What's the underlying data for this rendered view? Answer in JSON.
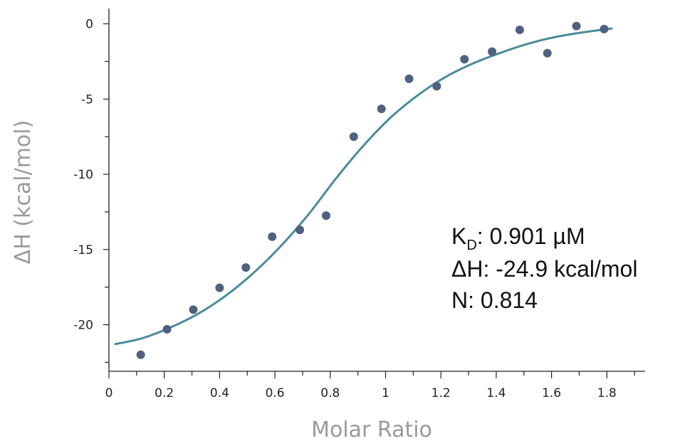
{
  "chart_data": {
    "type": "scatter",
    "xlabel": "Molar Ratio",
    "ylabel": "ΔH (kcal/mol)",
    "xlim": [
      0,
      1.9
    ],
    "ylim": [
      -23.5,
      1
    ],
    "x_ticks": [
      "0",
      "0.2",
      "0.4",
      "0.6",
      "0.8",
      "1",
      "1.2",
      "1.4",
      "1.6",
      "1.8"
    ],
    "y_ticks": [
      "0",
      "-5",
      "-10",
      "-15",
      "-20"
    ],
    "grid": false,
    "colors": {
      "points": "#50607f",
      "fit": "#4a8b9b",
      "axis": "#222222"
    },
    "series": [
      {
        "kind": "points",
        "x": [
          0.115,
          0.21,
          0.305,
          0.4,
          0.495,
          0.59,
          0.69,
          0.785,
          0.885,
          0.985,
          1.085,
          1.185,
          1.285,
          1.385,
          1.485,
          1.585,
          1.69,
          1.79
        ],
        "y": [
          -22.0,
          -20.3,
          -19.0,
          -17.55,
          -16.2,
          -14.15,
          -13.7,
          -12.75,
          -7.5,
          -5.65,
          -3.65,
          -4.15,
          -2.35,
          -1.85,
          -0.4,
          -1.95,
          -0.15,
          -0.35
        ]
      },
      {
        "kind": "fit",
        "x": [
          0.02,
          0.12,
          0.22,
          0.32,
          0.42,
          0.52,
          0.62,
          0.72,
          0.82,
          0.92,
          1.02,
          1.12,
          1.22,
          1.32,
          1.42,
          1.52,
          1.62,
          1.72,
          1.82
        ],
        "y": [
          -21.3,
          -20.9,
          -20.2,
          -19.3,
          -18.1,
          -16.6,
          -14.8,
          -12.7,
          -10.3,
          -8.1,
          -6.2,
          -4.7,
          -3.5,
          -2.6,
          -1.9,
          -1.3,
          -0.85,
          -0.55,
          -0.3
        ]
      }
    ],
    "annotation": {
      "kd_symbol": "K",
      "kd_subscript": "D",
      "kd_value": ": 0.901 µM",
      "dh_line": "ΔH:  -24.9 kcal/mol",
      "n_line": "N: 0.814"
    }
  }
}
